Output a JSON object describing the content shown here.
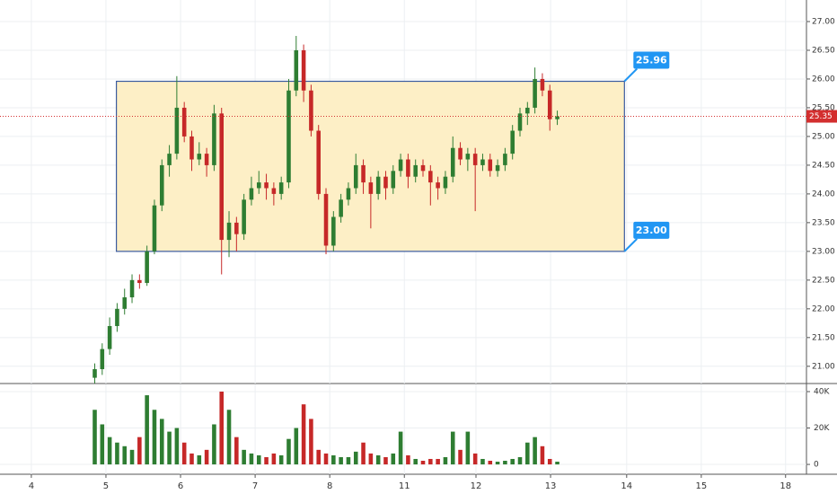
{
  "chart_data": {
    "type": "candlestick",
    "up_color": "#2e7d32",
    "down_color": "#c62828",
    "grid": true,
    "xlim": [
      -0.42,
      10.39
    ],
    "xticks": [
      {
        "value": 0,
        "label": "4"
      },
      {
        "value": 1,
        "label": "5"
      },
      {
        "value": 2,
        "label": "6"
      },
      {
        "value": 3,
        "label": "7"
      },
      {
        "value": 4,
        "label": "8"
      },
      {
        "value": 5,
        "label": "11"
      },
      {
        "value": 5.96,
        "label": "12"
      },
      {
        "value": 6.96,
        "label": "13"
      },
      {
        "value": 7.98,
        "label": "14"
      },
      {
        "value": 8.98,
        "label": "15"
      },
      {
        "value": 10.11,
        "label": "18"
      }
    ],
    "ylim": [
      20.7,
      27.375
    ],
    "yticks": [
      {
        "value": 21,
        "label": "21.00"
      },
      {
        "value": 21.5,
        "label": "21.50"
      },
      {
        "value": 22,
        "label": "22.00"
      },
      {
        "value": 22.5,
        "label": "22.50"
      },
      {
        "value": 23,
        "label": "23.00"
      },
      {
        "value": 23.5,
        "label": "23.50"
      },
      {
        "value": 24,
        "label": "24.00"
      },
      {
        "value": 24.5,
        "label": "24.50"
      },
      {
        "value": 25,
        "label": "25.00"
      },
      {
        "value": 25.5,
        "label": "25.50"
      },
      {
        "value": 26,
        "label": "26.00"
      },
      {
        "value": 26.5,
        "label": "26.50"
      },
      {
        "value": 27,
        "label": "27.00"
      }
    ],
    "y2lim": [
      -5400,
      43950
    ],
    "y2ticks": [
      0,
      {
        "value": 20000,
        "label": "20K"
      },
      {
        "value": 40000,
        "label": "40K"
      }
    ],
    "candles": {
      "x": [
        0.85,
        0.95,
        1.05,
        1.15,
        1.25,
        1.35,
        1.45,
        1.55,
        1.65,
        1.75,
        1.85,
        1.95,
        2.05,
        2.15,
        2.25,
        2.35,
        2.45,
        2.55,
        2.65,
        2.75,
        2.85,
        2.95,
        3.05,
        3.15,
        3.25,
        3.35,
        3.45,
        3.55,
        3.65,
        3.75,
        3.85,
        3.95,
        4.05,
        4.15,
        4.25,
        4.35,
        4.45,
        4.55,
        4.65,
        4.75,
        4.85,
        4.95,
        5.05,
        5.15,
        5.25,
        5.35,
        5.45,
        5.55,
        5.65,
        5.75,
        5.85,
        5.95,
        6.05,
        6.15,
        6.25,
        6.35,
        6.45,
        6.55,
        6.65,
        6.75,
        6.85,
        6.95,
        7.05
      ],
      "open": [
        20.8,
        20.95,
        21.3,
        21.7,
        22.0,
        22.2,
        22.5,
        22.45,
        23.0,
        23.8,
        24.5,
        24.7,
        25.5,
        25.0,
        24.6,
        24.7,
        24.5,
        25.4,
        23.2,
        23.5,
        23.3,
        23.9,
        24.1,
        24.2,
        24.1,
        24.0,
        24.2,
        25.8,
        26.5,
        25.8,
        25.1,
        24.0,
        23.1,
        23.6,
        23.9,
        24.1,
        24.5,
        24.2,
        24.0,
        24.3,
        24.1,
        24.4,
        24.6,
        24.3,
        24.5,
        24.4,
        24.2,
        24.1,
        24.3,
        24.8,
        24.6,
        24.7,
        24.5,
        24.6,
        24.4,
        24.5,
        24.7,
        25.1,
        25.4,
        25.5,
        26.0,
        25.8,
        25.3
      ],
      "high": [
        21.05,
        21.4,
        21.85,
        22.1,
        22.35,
        22.6,
        22.6,
        23.1,
        23.9,
        24.6,
        24.85,
        26.05,
        25.6,
        25.1,
        24.9,
        24.8,
        25.55,
        25.5,
        23.7,
        23.6,
        24.0,
        24.3,
        24.4,
        24.35,
        24.2,
        24.3,
        26.0,
        26.75,
        26.6,
        25.9,
        25.2,
        24.1,
        23.7,
        24.0,
        24.2,
        24.7,
        24.6,
        24.3,
        24.4,
        24.4,
        24.5,
        24.7,
        24.7,
        24.6,
        24.6,
        24.5,
        24.3,
        24.4,
        25.0,
        24.9,
        24.8,
        24.8,
        24.7,
        24.7,
        24.6,
        24.8,
        25.2,
        25.5,
        25.6,
        26.2,
        26.1,
        25.9,
        25.45
      ],
      "low": [
        20.7,
        20.85,
        21.2,
        21.6,
        21.9,
        22.1,
        22.35,
        22.4,
        22.95,
        23.7,
        24.3,
        24.6,
        24.9,
        24.4,
        24.5,
        24.3,
        24.4,
        22.6,
        22.9,
        23.0,
        23.2,
        23.8,
        24.0,
        23.9,
        23.8,
        23.9,
        24.1,
        25.7,
        25.6,
        25.0,
        23.9,
        22.95,
        23.0,
        23.5,
        23.8,
        24.0,
        24.0,
        23.4,
        23.9,
        23.9,
        24.0,
        24.3,
        24.1,
        24.2,
        24.3,
        23.8,
        23.9,
        24.0,
        24.2,
        24.5,
        24.4,
        23.7,
        24.4,
        24.3,
        24.3,
        24.4,
        24.6,
        25.0,
        25.2,
        25.4,
        25.7,
        25.1,
        25.2
      ],
      "close": [
        20.95,
        21.3,
        21.7,
        22.0,
        22.2,
        22.5,
        22.45,
        23.0,
        23.8,
        24.5,
        24.7,
        25.5,
        25.0,
        24.6,
        24.7,
        24.5,
        25.4,
        23.2,
        23.5,
        23.3,
        23.9,
        24.1,
        24.2,
        24.1,
        24.0,
        24.2,
        25.8,
        26.5,
        25.8,
        25.1,
        24.0,
        23.1,
        23.6,
        23.9,
        24.1,
        24.5,
        24.2,
        24.0,
        24.3,
        24.1,
        24.4,
        24.6,
        24.3,
        24.5,
        24.4,
        24.2,
        24.1,
        24.3,
        24.8,
        24.6,
        24.7,
        24.5,
        24.6,
        24.4,
        24.5,
        24.7,
        25.1,
        25.4,
        25.5,
        26.0,
        25.8,
        25.3,
        25.35
      ],
      "volume": [
        30000,
        22000,
        15000,
        12000,
        10000,
        8000,
        15000,
        38000,
        30000,
        25000,
        18000,
        20000,
        12000,
        6000,
        5000,
        8000,
        22000,
        40000,
        30000,
        15000,
        8000,
        6000,
        5000,
        4000,
        6000,
        5000,
        14000,
        20000,
        33000,
        25000,
        8000,
        6000,
        5000,
        4000,
        4000,
        7000,
        12000,
        6000,
        5000,
        4000,
        6000,
        18000,
        5000,
        3000,
        2000,
        3000,
        3000,
        4000,
        18000,
        8000,
        18000,
        6000,
        3000,
        2000,
        1500,
        2000,
        3000,
        4000,
        12000,
        15000,
        10000,
        3000,
        1500
      ]
    },
    "range_box": {
      "x": [
        1.14,
        7.95
      ],
      "values": [
        23,
        25.96
      ],
      "value_labels": [
        "23.00",
        "25.96"
      ],
      "color": "#3a5ba0",
      "fill": "#fdefc6",
      "label_color": "#2196f3"
    },
    "last_price": 25.35,
    "last_price_color": "#d32f2f"
  }
}
